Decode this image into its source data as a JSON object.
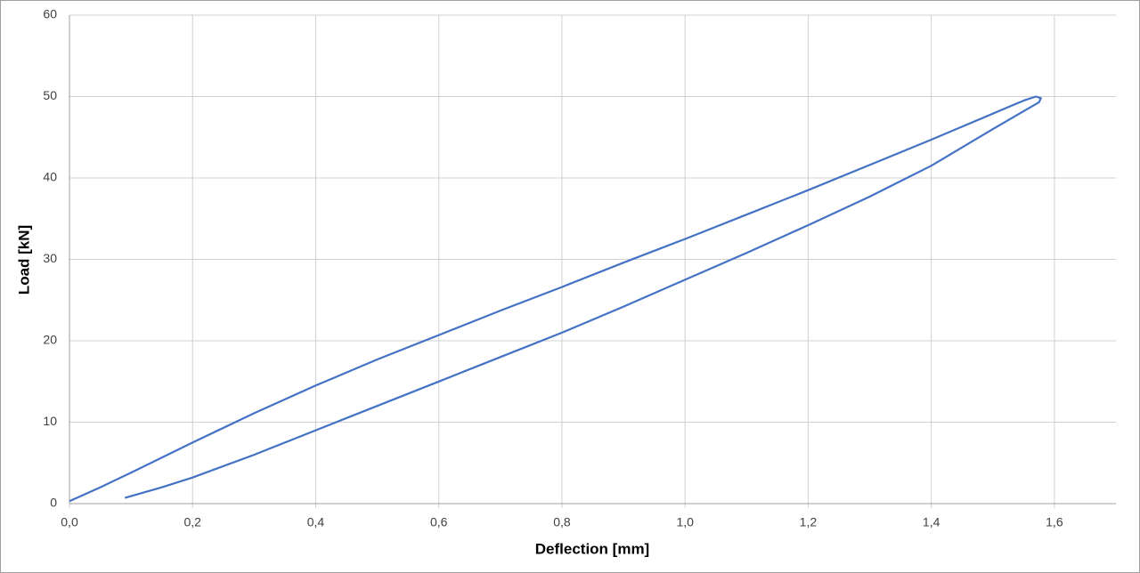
{
  "chart_data": {
    "type": "line",
    "xlabel": "Deflection [mm]",
    "ylabel": "Load [kN]",
    "xlim": [
      0,
      1.7
    ],
    "ylim": [
      0,
      60
    ],
    "xticks": [
      {
        "value": 0,
        "label": "0,0"
      },
      {
        "value": 0.2,
        "label": "0,2"
      },
      {
        "value": 0.4,
        "label": "0,4"
      },
      {
        "value": 0.6,
        "label": "0,6"
      },
      {
        "value": 0.8,
        "label": "0,8"
      },
      {
        "value": 1.0,
        "label": "1,0"
      },
      {
        "value": 1.2,
        "label": "1,2"
      },
      {
        "value": 1.4,
        "label": "1,4"
      },
      {
        "value": 1.6,
        "label": "1,6"
      }
    ],
    "yticks": [
      0,
      10,
      20,
      30,
      40,
      50,
      60
    ],
    "grid": true,
    "series": [
      {
        "color": "#4472c4",
        "x": [
          0,
          0.05,
          0.1,
          0.2,
          0.3,
          0.4,
          0.5,
          0.6,
          0.7,
          0.8,
          0.9,
          1.0,
          1.1,
          1.2,
          1.3,
          1.4,
          1.5,
          1.55,
          1.57,
          1.578,
          1.575,
          1.5,
          1.4,
          1.3,
          1.2,
          1.1,
          1.0,
          0.9,
          0.8,
          0.7,
          0.6,
          0.5,
          0.4,
          0.3,
          0.2,
          0.15,
          0.09
        ],
        "values": [
          0.3,
          2.0,
          3.8,
          7.5,
          11.1,
          14.5,
          17.7,
          20.7,
          23.7,
          26.6,
          29.6,
          32.5,
          35.5,
          38.5,
          41.6,
          44.7,
          47.9,
          49.5,
          50.0,
          49.8,
          49.3,
          46.0,
          41.5,
          37.7,
          34.2,
          30.8,
          27.5,
          24.2,
          21.0,
          18.0,
          15.0,
          12.0,
          9.0,
          6.0,
          3.2,
          2.0,
          0.7
        ]
      }
    ]
  }
}
